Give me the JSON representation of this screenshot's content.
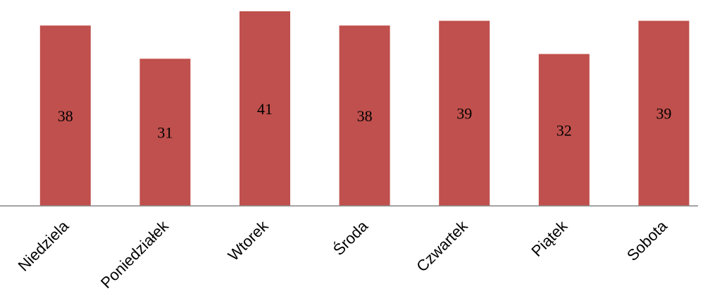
{
  "chart_data": {
    "type": "bar",
    "title": "",
    "xlabel": "",
    "ylabel": "",
    "categories": [
      "Niedziela",
      "Poniedziałek",
      "Wtorek",
      "Środa",
      "Czwartek",
      "Piątek",
      "Sobota"
    ],
    "values": [
      38,
      31,
      41,
      38,
      39,
      32,
      39
    ],
    "data_labels": [
      "38",
      "31",
      "41",
      "38",
      "39",
      "32",
      "39"
    ],
    "ylim": [
      0,
      41
    ],
    "grid": false,
    "legend": "none",
    "bar_color": "#c0504d",
    "axis_color": "#868686"
  }
}
